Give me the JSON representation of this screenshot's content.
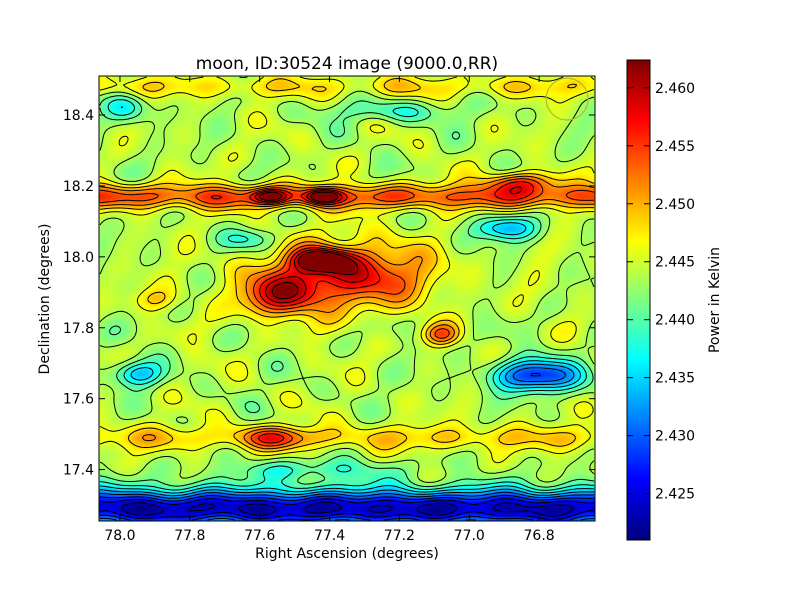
{
  "chart_data": {
    "type": "heatmap",
    "title": "moon, ID:30524 image (9000.0,RR)",
    "xlabel": "Right Ascension (degrees)",
    "ylabel": "Declination (degrees)",
    "colorbar_label": "Power in Kelvin",
    "x_range": [
      78.06,
      76.64
    ],
    "y_range": [
      17.255,
      18.51
    ],
    "x_ticks": [
      78.0,
      77.8,
      77.6,
      77.4,
      77.2,
      77.0,
      76.8
    ],
    "x_tick_labels": [
      "78.0",
      "77.8",
      "77.6",
      "77.4",
      "77.2",
      "77.0",
      "76.8"
    ],
    "y_ticks": [
      17.4,
      17.6,
      17.8,
      18.0,
      18.2,
      18.4
    ],
    "y_tick_labels": [
      "17.4",
      "17.6",
      "17.8",
      "18.0",
      "18.2",
      "18.4"
    ],
    "colorbar_range": [
      2.421,
      2.4624
    ],
    "colorbar_ticks": [
      2.425,
      2.43,
      2.435,
      2.44,
      2.445,
      2.45,
      2.455,
      2.46
    ],
    "colorbar_tick_labels": [
      "2.425",
      "2.430",
      "2.435",
      "2.440",
      "2.445",
      "2.450",
      "2.455",
      "2.460"
    ],
    "colormap": "jet",
    "contour_lines": true,
    "beam_marker": {
      "ra": 76.72,
      "dec": 18.445,
      "radius_deg": 0.06,
      "color": "#b8b232"
    },
    "features": [
      {
        "kind": "bottom_band",
        "dec": 17.29,
        "value": 2.421,
        "sigma_dec": 0.055
      },
      {
        "kind": "band",
        "dec": 18.17,
        "value": 2.455,
        "sigma_dec": 0.035
      },
      {
        "kind": "band",
        "dec": 17.49,
        "value": 2.449,
        "sigma_dec": 0.035
      },
      {
        "kind": "band",
        "dec": 18.48,
        "value": 2.448,
        "sigma_dec": 0.03
      },
      {
        "kind": "blob",
        "ra": 77.35,
        "dec": 17.95,
        "value": 2.461,
        "sigma_ra": 0.22,
        "sigma_dec": 0.09
      },
      {
        "kind": "blob",
        "ra": 77.55,
        "dec": 17.89,
        "value": 2.457,
        "sigma_ra": 0.12,
        "sigma_dec": 0.06
      },
      {
        "kind": "blob",
        "ra": 77.42,
        "dec": 17.99,
        "value": 2.4615,
        "sigma_ra": 0.08,
        "sigma_dec": 0.03
      },
      {
        "kind": "blob",
        "ra": 77.42,
        "dec": 18.17,
        "value": 2.459,
        "sigma_ra": 0.05,
        "sigma_dec": 0.02
      },
      {
        "kind": "blob",
        "ra": 77.57,
        "dec": 18.17,
        "value": 2.457,
        "sigma_ra": 0.05,
        "sigma_dec": 0.02
      },
      {
        "kind": "blob",
        "ra": 76.86,
        "dec": 18.21,
        "value": 2.456,
        "sigma_ra": 0.1,
        "sigma_dec": 0.03
      },
      {
        "kind": "blob",
        "ra": 77.08,
        "dec": 17.78,
        "value": 2.454,
        "sigma_ra": 0.05,
        "sigma_dec": 0.03
      },
      {
        "kind": "blob",
        "ra": 76.8,
        "dec": 17.665,
        "value": 2.425,
        "sigma_ra": 0.13,
        "sigma_dec": 0.045
      },
      {
        "kind": "blob",
        "ra": 77.95,
        "dec": 17.67,
        "value": 2.433,
        "sigma_ra": 0.07,
        "sigma_dec": 0.035
      },
      {
        "kind": "blob",
        "ra": 76.9,
        "dec": 18.08,
        "value": 2.432,
        "sigma_ra": 0.09,
        "sigma_dec": 0.035
      },
      {
        "kind": "blob",
        "ra": 77.63,
        "dec": 18.05,
        "value": 2.437,
        "sigma_ra": 0.08,
        "sigma_dec": 0.03
      },
      {
        "kind": "blob",
        "ra": 77.22,
        "dec": 18.41,
        "value": 2.438,
        "sigma_ra": 0.18,
        "sigma_dec": 0.03
      },
      {
        "kind": "blob",
        "ra": 77.98,
        "dec": 18.42,
        "value": 2.435,
        "sigma_ra": 0.06,
        "sigma_dec": 0.04
      },
      {
        "kind": "blob",
        "ra": 77.45,
        "dec": 17.4,
        "value": 2.438,
        "sigma_ra": 0.25,
        "sigma_dec": 0.03
      },
      {
        "kind": "blob",
        "ra": 77.9,
        "dec": 17.88,
        "value": 2.449,
        "sigma_ra": 0.06,
        "sigma_dec": 0.03
      },
      {
        "kind": "blob",
        "ra": 77.55,
        "dec": 17.49,
        "value": 2.452,
        "sigma_ra": 0.1,
        "sigma_dec": 0.03
      }
    ]
  }
}
